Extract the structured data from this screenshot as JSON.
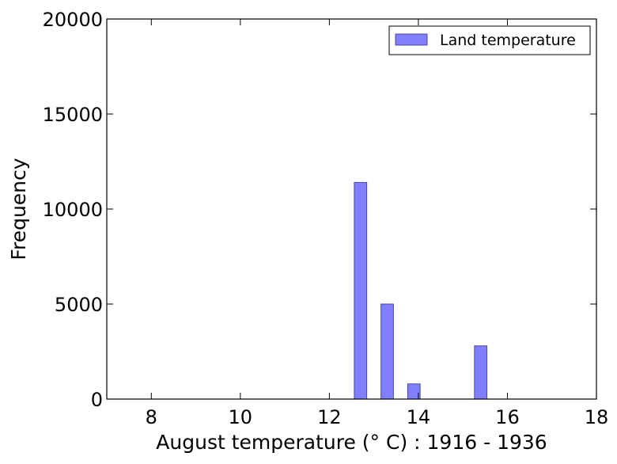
{
  "chart_data": {
    "type": "bar",
    "title": "",
    "xlabel": "August temperature (° C) : 1916 - 1936",
    "ylabel": "Frequency",
    "xlim": [
      7,
      18
    ],
    "ylim": [
      0,
      20000
    ],
    "xticks": [
      "8",
      "10",
      "12",
      "14",
      "16",
      "18"
    ],
    "xtick_values": [
      8,
      10,
      12,
      14,
      16,
      18
    ],
    "yticks": [
      "0",
      "5000",
      "10000",
      "15000",
      "20000"
    ],
    "ytick_values": [
      0,
      5000,
      10000,
      15000,
      20000
    ],
    "grid": false,
    "legend_position": "top-right",
    "bar_width": 0.28,
    "series": [
      {
        "name": "Land temperature",
        "color": "#7f7fff",
        "edge_color": "#4a4a99",
        "x": [
          12.7,
          13.3,
          13.9,
          15.4
        ],
        "values": [
          11400,
          5000,
          800,
          2800
        ]
      }
    ]
  }
}
